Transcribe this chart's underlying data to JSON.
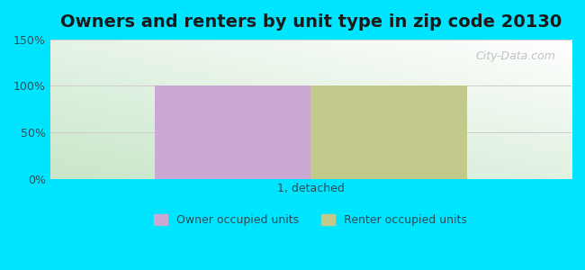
{
  "title": "Owners and renters by unit type in zip code 20130",
  "categories": [
    "1, detached"
  ],
  "owner_values": [
    100
  ],
  "renter_values": [
    100
  ],
  "owner_color": "#c9a8d4",
  "renter_color": "#c2c98a",
  "ylim": [
    0,
    150
  ],
  "yticks": [
    0,
    50,
    100,
    150
  ],
  "ytick_labels": [
    "0%",
    "50%",
    "100%",
    "150%"
  ],
  "bg_color": "#00e5ff",
  "watermark": "City-Data.com",
  "legend_owner": "Owner occupied units",
  "legend_renter": "Renter occupied units",
  "bar_width": 0.3,
  "title_fontsize": 14,
  "axis_label_color": "#2d4a52",
  "grid_color": "#cccccc"
}
